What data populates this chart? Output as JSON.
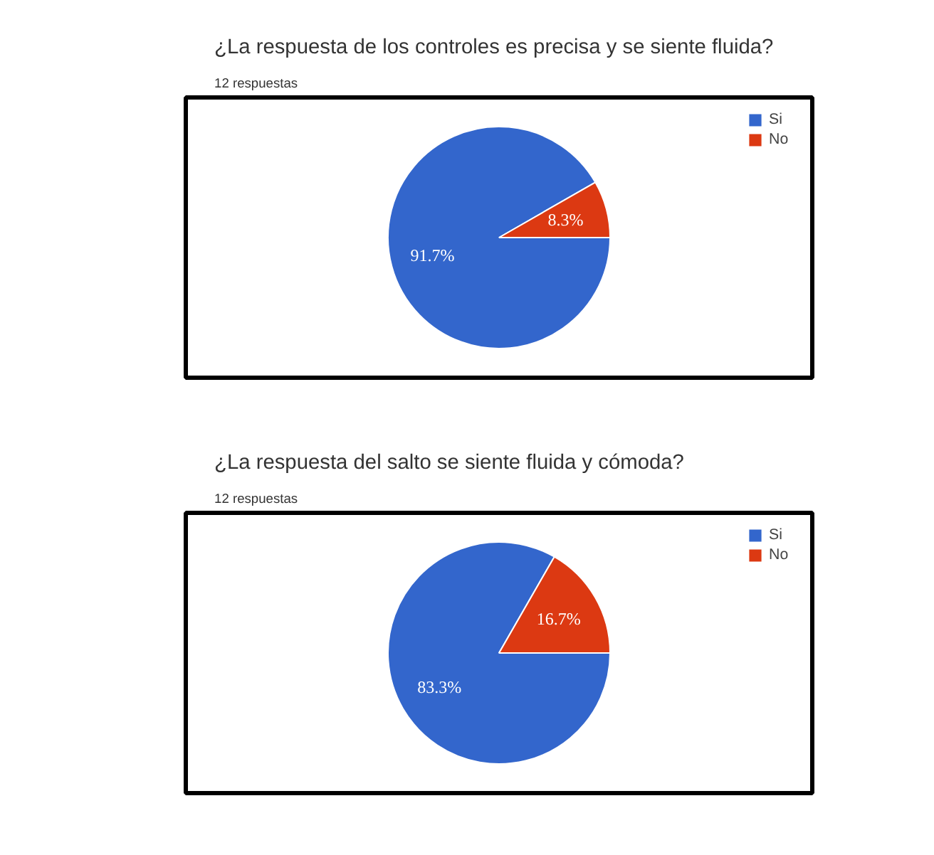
{
  "chart_data": [
    {
      "type": "pie",
      "title": "¿La respuesta de los controles es precisa y se siente fluida?",
      "subtitle": "12 respuestas",
      "categories": [
        "Si",
        "No"
      ],
      "values": [
        91.7,
        8.3
      ],
      "colors": [
        "#3366cc",
        "#dc3912"
      ],
      "value_labels": [
        "91.7%",
        "8.3%"
      ],
      "legend": "top right"
    },
    {
      "type": "pie",
      "title": "¿La respuesta del salto se siente fluida y cómoda?",
      "subtitle": "12 respuestas",
      "categories": [
        "Si",
        "No"
      ],
      "values": [
        83.3,
        16.7
      ],
      "colors": [
        "#3366cc",
        "#dc3912"
      ],
      "value_labels": [
        "83.3%",
        "16.7%"
      ],
      "legend": "top right"
    }
  ]
}
